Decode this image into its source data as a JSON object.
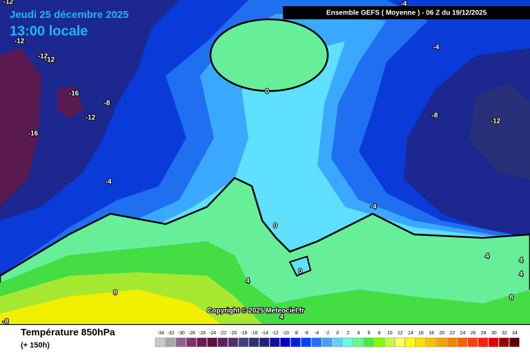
{
  "header": {
    "date": "Jeudi 25 décembre 2025",
    "time": "13:00 locale",
    "model": "Ensemble GEFS  ( Moyenne )  -  06 Z du 19/12/2025"
  },
  "map": {
    "contour_labels": [
      -12,
      -12,
      -12,
      -12,
      -16,
      -8,
      -12,
      -16,
      -4,
      0,
      -4,
      -4,
      -8,
      -12,
      -4,
      0,
      0,
      4,
      8,
      4,
      4,
      4,
      8,
      -8,
      4
    ]
  },
  "copyright": "Copyright © 2025 Meteociel.fr",
  "footer": {
    "title": "Température 850hPa",
    "lead": "(+ 150h)"
  },
  "legend": {
    "labels": [
      -34,
      -32,
      -30,
      -28,
      -26,
      -24,
      -22,
      -20,
      -18,
      -16,
      -14,
      -12,
      -10,
      -8,
      -6,
      -4,
      -2,
      0,
      2,
      4,
      6,
      8,
      10,
      12,
      14,
      16,
      18,
      20,
      22,
      24,
      26,
      28,
      30,
      32,
      34
    ],
    "colors": [
      "#c8c8c8",
      "#a8a8a8",
      "#906090",
      "#803070",
      "#701850",
      "#601040",
      "#602060",
      "#503070",
      "#404080",
      "#303070",
      "#202080",
      "#1010a0",
      "#0000c0",
      "#0020e0",
      "#0040ff",
      "#2070ff",
      "#40a0ff",
      "#60d0ff",
      "#60ffe0",
      "#60ff90",
      "#40f040",
      "#80ff00",
      "#c0ff40",
      "#ffff60",
      "#ffff00",
      "#ffe000",
      "#ffc000",
      "#ffa000",
      "#ff8000",
      "#ff6000",
      "#ff4000",
      "#ff2000",
      "#e00000",
      "#a00000",
      "#600000"
    ]
  }
}
